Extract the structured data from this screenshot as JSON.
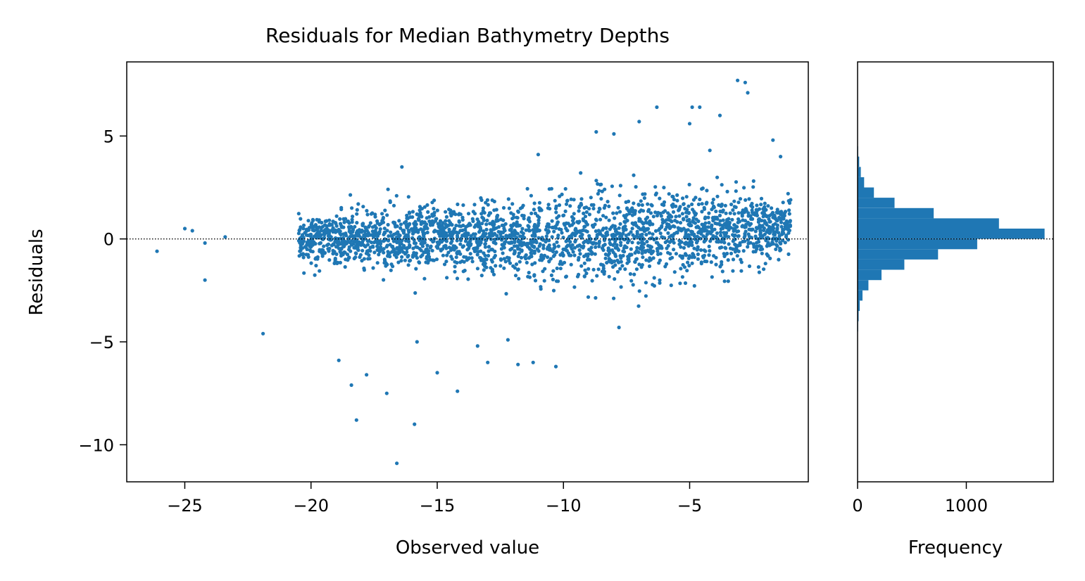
{
  "figure": {
    "title": "Residuals for Median Bathymetry Depths",
    "accent_color": "#1f77b4"
  },
  "chart_data": [
    {
      "type": "scatter",
      "title": "Residuals for Median Bathymetry Depths",
      "xlabel": "Observed value",
      "ylabel": "Residuals",
      "xlim": [
        -27.3,
        -0.3
      ],
      "ylim": [
        -11.8,
        8.6
      ],
      "xticks": [
        -25,
        -20,
        -15,
        -10,
        -5
      ],
      "xtick_labels": [
        "−25",
        "−20",
        "−15",
        "−10",
        "−5"
      ],
      "yticks": [
        -10,
        -5,
        0,
        5
      ],
      "ytick_labels": [
        "−10",
        "−5",
        "0",
        "5"
      ],
      "grid": false,
      "reference_line": {
        "y": 0,
        "style": "dotted",
        "color": "#000000"
      },
      "color": "#1f77b4",
      "outliers": [
        {
          "x": -26.1,
          "y": -0.6
        },
        {
          "x": -25.0,
          "y": 0.5
        },
        {
          "x": -24.7,
          "y": 0.4
        },
        {
          "x": -24.2,
          "y": -0.2
        },
        {
          "x": -24.2,
          "y": -2.0
        },
        {
          "x": -23.4,
          "y": 0.1
        },
        {
          "x": -21.9,
          "y": -4.6
        },
        {
          "x": -18.9,
          "y": -5.9
        },
        {
          "x": -18.4,
          "y": -7.1
        },
        {
          "x": -18.2,
          "y": -8.8
        },
        {
          "x": -17.8,
          "y": -6.6
        },
        {
          "x": -17.0,
          "y": -7.5
        },
        {
          "x": -16.6,
          "y": -10.9
        },
        {
          "x": -16.4,
          "y": 3.5
        },
        {
          "x": -15.9,
          "y": -9.0
        },
        {
          "x": -15.8,
          "y": -5.0
        },
        {
          "x": -15.0,
          "y": -6.5
        },
        {
          "x": -14.2,
          "y": -7.4
        },
        {
          "x": -13.4,
          "y": -5.2
        },
        {
          "x": -13.0,
          "y": -6.0
        },
        {
          "x": -12.2,
          "y": -4.9
        },
        {
          "x": -11.8,
          "y": -6.1
        },
        {
          "x": -11.2,
          "y": -6.0
        },
        {
          "x": -11.0,
          "y": 4.1
        },
        {
          "x": -10.3,
          "y": -6.2
        },
        {
          "x": -8.7,
          "y": 5.2
        },
        {
          "x": -8.0,
          "y": 5.1
        },
        {
          "x": -7.0,
          "y": 5.7
        },
        {
          "x": -6.3,
          "y": 6.4
        },
        {
          "x": -4.9,
          "y": 6.4
        },
        {
          "x": -4.6,
          "y": 6.4
        },
        {
          "x": -3.8,
          "y": 6.0
        },
        {
          "x": -3.1,
          "y": 7.7
        },
        {
          "x": -2.7,
          "y": 7.1
        },
        {
          "x": -2.8,
          "y": 7.6
        },
        {
          "x": -1.7,
          "y": 4.8
        },
        {
          "x": -1.4,
          "y": 4.0
        },
        {
          "x": -1.1,
          "y": 2.2
        },
        {
          "x": -1.0,
          "y": 1.9
        },
        {
          "x": -5.0,
          "y": 5.6
        },
        {
          "x": -4.2,
          "y": 4.3
        },
        {
          "x": -7.8,
          "y": -4.3
        }
      ],
      "dense_cloud": {
        "x_range": [
          -20.5,
          -1.0
        ],
        "center_y": 0.0,
        "spread_profile": [
          {
            "x": -20.5,
            "sd": 0.45
          },
          {
            "x": -18.0,
            "sd": 0.75
          },
          {
            "x": -14.0,
            "sd": 0.8
          },
          {
            "x": -10.0,
            "sd": 1.0
          },
          {
            "x": -6.0,
            "sd": 1.05
          },
          {
            "x": -3.0,
            "sd": 0.9
          },
          {
            "x": -1.0,
            "sd": 0.6
          }
        ]
      }
    },
    {
      "type": "bar",
      "orientation": "horizontal",
      "title": "",
      "xlabel": "Frequency",
      "ylabel": "",
      "xlim": [
        0,
        1800
      ],
      "ylim": [
        -11.8,
        8.6
      ],
      "xticks": [
        0,
        1000
      ],
      "xtick_labels": [
        "0",
        "1000"
      ],
      "bin_edges": [
        -4.5,
        -4.0,
        -3.5,
        -3.0,
        -2.5,
        -2.0,
        -1.5,
        -1.0,
        -0.5,
        0.0,
        0.5,
        1.0,
        1.5,
        2.0,
        2.5,
        3.0,
        3.5,
        4.0,
        4.5
      ],
      "values": [
        5,
        10,
        20,
        45,
        100,
        220,
        430,
        740,
        1100,
        1720,
        1300,
        700,
        340,
        150,
        60,
        30,
        15,
        5
      ],
      "reference_line": {
        "y": 0,
        "style": "dotted",
        "color": "#000000"
      },
      "color": "#1f77b4"
    }
  ]
}
